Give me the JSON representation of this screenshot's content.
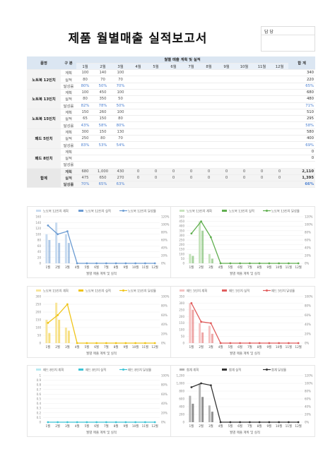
{
  "title": "제품 월별매출 실적보고서",
  "sign_label": "담 당",
  "header": {
    "product": "품명",
    "category": "구 분",
    "span": "월별 매출 계획 및 실적",
    "total": "합 계",
    "months": [
      "1월",
      "2월",
      "3월",
      "4월",
      "5월",
      "6월",
      "7월",
      "8월",
      "9월",
      "10월",
      "11월",
      "12월"
    ]
  },
  "products": [
    {
      "name": "노트북 12인치",
      "plan": [
        "100",
        "140",
        "100",
        "",
        "",
        "",
        "",
        "",
        "",
        "",
        "",
        ""
      ],
      "actual": [
        "80",
        "70",
        "70",
        "",
        "",
        "",
        "",
        "",
        "",
        "",
        "",
        ""
      ],
      "rate": [
        "80%",
        "50%",
        "70%",
        "",
        "",
        "",
        "",
        "",
        "",
        "",
        "",
        ""
      ],
      "tot_plan": "340",
      "tot_actual": "220",
      "tot_rate": "65%"
    },
    {
      "name": "노트북 13인치",
      "plan": [
        "100",
        "450",
        "100",
        "",
        "",
        "",
        "",
        "",
        "",
        "",
        "",
        ""
      ],
      "actual": [
        "80",
        "350",
        "50",
        "",
        "",
        "",
        "",
        "",
        "",
        "",
        "",
        ""
      ],
      "rate": [
        "82%",
        "78%",
        "50%",
        "",
        "",
        "",
        "",
        "",
        "",
        "",
        "",
        ""
      ],
      "tot_plan": "680",
      "tot_actual": "480",
      "tot_rate": "71%"
    },
    {
      "name": "노트북 15인치",
      "plan": [
        "150",
        "260",
        "100",
        "",
        "",
        "",
        "",
        "",
        "",
        "",
        "",
        ""
      ],
      "actual": [
        "65",
        "150",
        "80",
        "",
        "",
        "",
        "",
        "",
        "",
        "",
        "",
        ""
      ],
      "rate": [
        "43%",
        "58%",
        "80%",
        "",
        "",
        "",
        "",
        "",
        "",
        "",
        "",
        ""
      ],
      "tot_plan": "510",
      "tot_actual": "295",
      "tot_rate": "58%"
    },
    {
      "name": "패드 5인치",
      "plan": [
        "300",
        "150",
        "130",
        "",
        "",
        "",
        "",
        "",
        "",
        "",
        "",
        ""
      ],
      "actual": [
        "250",
        "80",
        "70",
        "",
        "",
        "",
        "",
        "",
        "",
        "",
        "",
        ""
      ],
      "rate": [
        "83%",
        "53%",
        "54%",
        "",
        "",
        "",
        "",
        "",
        "",
        "",
        "",
        ""
      ],
      "tot_plan": "580",
      "tot_actual": "400",
      "tot_rate": "69%"
    },
    {
      "name": "패드 8인치",
      "plan": [
        "",
        "",
        "",
        "",
        "",
        "",
        "",
        "",
        "",
        "",
        "",
        ""
      ],
      "actual": [
        "",
        "",
        "",
        "",
        "",
        "",
        "",
        "",
        "",
        "",
        "",
        ""
      ],
      "rate": [
        "",
        "",
        "",
        "",
        "",
        "",
        "",
        "",
        "",
        "",
        "",
        ""
      ],
      "tot_plan": "0",
      "tot_actual": "0",
      "tot_rate": ""
    }
  ],
  "row_labels": {
    "plan": "계획",
    "actual": "실적",
    "rate": "달성률"
  },
  "total_row": {
    "name": "합계",
    "plan": [
      "680",
      "1,000",
      "430",
      "0",
      "0",
      "0",
      "0",
      "0",
      "0",
      "0",
      "0",
      "0"
    ],
    "actual": [
      "475",
      "650",
      "270",
      "0",
      "0",
      "0",
      "0",
      "0",
      "0",
      "0",
      "0",
      "0"
    ],
    "rate": [
      "70%",
      "65%",
      "63%",
      "",
      "",
      "",
      "",
      "",
      "",
      "",
      "",
      ""
    ],
    "tot_plan": "2,110",
    "tot_actual": "1,395",
    "tot_rate": "66%"
  },
  "chart_data": [
    {
      "type": "bar",
      "legend": [
        "노트북 12인치 계획",
        "노트북 12인치 실적",
        "노트북 12인치 달성률"
      ],
      "xlabel": "월별 매출 계획 및 실적",
      "color": "#6b9bd2",
      "light": "#c8dbf0",
      "categories": [
        "1월",
        "2월",
        "3월",
        "4월",
        "5월",
        "6월",
        "7월",
        "8월",
        "9월",
        "10월",
        "11월",
        "12월"
      ],
      "plan": [
        100,
        140,
        100,
        0,
        0,
        0,
        0,
        0,
        0,
        0,
        0,
        0
      ],
      "actual": [
        80,
        70,
        70,
        0,
        0,
        0,
        0,
        0,
        0,
        0,
        0,
        0
      ],
      "rate": [
        80,
        50,
        70,
        0,
        0,
        0,
        0,
        0,
        0,
        0,
        0,
        0
      ],
      "ylim": [
        0,
        160
      ],
      "yticks": [
        "0",
        "20",
        "40",
        "60",
        "80",
        "100",
        "120",
        "140",
        "160"
      ],
      "y2ticks": [
        "0%",
        "20%",
        "40%",
        "60%",
        "80%",
        "100%",
        "120%"
      ],
      "line_values": [
        130,
        100,
        110,
        0,
        0,
        0,
        0,
        0,
        0,
        0,
        0,
        0
      ]
    },
    {
      "type": "bar",
      "legend": [
        "노트북 13인치 계획",
        "노트북 13인치 실적",
        "노트북 13인치 달성률"
      ],
      "xlabel": "월별 매출 계획 및 실적",
      "color": "#5fae4e",
      "light": "#c6e3bd",
      "categories": [
        "1월",
        "2월",
        "3월",
        "4월",
        "5월",
        "6월",
        "7월",
        "8월",
        "9월",
        "10월",
        "11월",
        "12월"
      ],
      "plan": [
        100,
        450,
        100,
        0,
        0,
        0,
        0,
        0,
        0,
        0,
        0,
        0
      ],
      "actual": [
        80,
        350,
        50,
        0,
        0,
        0,
        0,
        0,
        0,
        0,
        0,
        0
      ],
      "rate": [
        82,
        78,
        50,
        0,
        0,
        0,
        0,
        0,
        0,
        0,
        0,
        0
      ],
      "ylim": [
        0,
        500
      ],
      "yticks": [
        "0",
        "50",
        "100",
        "150",
        "200",
        "250",
        "300",
        "350",
        "400",
        "450",
        "500"
      ],
      "y2ticks": [
        "0%",
        "20%",
        "40%",
        "60%",
        "80%",
        "100%",
        "120%"
      ],
      "line_values": [
        320,
        450,
        280,
        0,
        0,
        0,
        0,
        0,
        0,
        0,
        0,
        0
      ]
    },
    {
      "type": "bar",
      "legend": [
        "노트북 15인치 계획",
        "노트북 15인치 실적",
        "노트북 15인치 달성률"
      ],
      "xlabel": "월별 매출 계획 및 실적",
      "color": "#f0c419",
      "light": "#f8e59a",
      "categories": [
        "1월",
        "2월",
        "3월",
        "4월",
        "5월",
        "6월",
        "7월",
        "8월",
        "9월",
        "10월",
        "11월",
        "12월"
      ],
      "plan": [
        150,
        260,
        100,
        0,
        0,
        0,
        0,
        0,
        0,
        0,
        0,
        0
      ],
      "actual": [
        65,
        150,
        80,
        0,
        0,
        0,
        0,
        0,
        0,
        0,
        0,
        0
      ],
      "rate": [
        43,
        58,
        80,
        0,
        0,
        0,
        0,
        0,
        0,
        0,
        0,
        0
      ],
      "ylim": [
        0,
        300
      ],
      "yticks": [
        "0",
        "50",
        "100",
        "150",
        "200",
        "250",
        "300"
      ],
      "y2ticks": [
        "0%",
        "20%",
        "40%",
        "60%",
        "80%",
        "100%"
      ],
      "line_values": [
        130,
        180,
        250,
        0,
        0,
        0,
        0,
        0,
        0,
        0,
        0,
        0
      ]
    },
    {
      "type": "bar",
      "legend": [
        "패드 5인치 계획",
        "패드 5인치 실적",
        "패드 5인치 달성률"
      ],
      "xlabel": "월별 매출 계획 및 실적",
      "color": "#e05c5c",
      "light": "#f5c2c2",
      "categories": [
        "1월",
        "2월",
        "3월",
        "4월",
        "5월",
        "6월",
        "7월",
        "8월",
        "9월",
        "10월",
        "11월",
        "12월"
      ],
      "plan": [
        300,
        150,
        130,
        0,
        0,
        0,
        0,
        0,
        0,
        0,
        0,
        0
      ],
      "actual": [
        250,
        80,
        70,
        0,
        0,
        0,
        0,
        0,
        0,
        0,
        0,
        0
      ],
      "rate": [
        83,
        53,
        54,
        0,
        0,
        0,
        0,
        0,
        0,
        0,
        0,
        0
      ],
      "ylim": [
        0,
        350
      ],
      "yticks": [
        "0",
        "50",
        "100",
        "150",
        "200",
        "250",
        "300",
        "350"
      ],
      "y2ticks": [
        "0%",
        "20%",
        "40%",
        "60%",
        "80%",
        "100%"
      ],
      "line_values": [
        300,
        160,
        150,
        0,
        0,
        0,
        0,
        0,
        0,
        0,
        0,
        0
      ]
    },
    {
      "type": "bar",
      "legend": [
        "패드 8인치 계획",
        "패드 8인치 실적",
        "패드 8인치 달성률"
      ],
      "xlabel": "월별 매출 계획 및 실적",
      "color": "#3cc4d6",
      "light": "#b8e9f0",
      "categories": [
        "1월",
        "2월",
        "3월",
        "4월",
        "5월",
        "6월",
        "7월",
        "8월",
        "9월",
        "10월",
        "11월",
        "12월"
      ],
      "plan": [
        0,
        0,
        0,
        0,
        0,
        0,
        0,
        0,
        0,
        0,
        0,
        0
      ],
      "actual": [
        0,
        0,
        0,
        0,
        0,
        0,
        0,
        0,
        0,
        0,
        0,
        0
      ],
      "rate": [
        0,
        0,
        0,
        0,
        0,
        0,
        0,
        0,
        0,
        0,
        0,
        0
      ],
      "ylim": [
        0,
        1
      ],
      "yticks": [
        "0",
        "0.1",
        "0.2",
        "0.3",
        "0.4",
        "0.5",
        "0.6",
        "0.7",
        "0.8",
        "0.9",
        "1"
      ],
      "y2ticks": [
        "0%",
        "20%",
        "40%",
        "60%",
        "80%",
        "100%"
      ],
      "line_values": [
        0,
        0,
        0,
        0,
        0,
        0,
        0,
        0,
        0,
        0,
        0,
        0
      ]
    },
    {
      "type": "bar",
      "legend": [
        "합계 계획",
        "합계 실적",
        "합계 달성률"
      ],
      "xlabel": "월별 매출 계획 및 실적",
      "color": "#333333",
      "light": "#b5b5b5",
      "categories": [
        "1월",
        "2월",
        "3월",
        "4월",
        "5월",
        "6월",
        "7월",
        "8월",
        "9월",
        "10월",
        "11월",
        "12월"
      ],
      "plan": [
        680,
        1000,
        430,
        0,
        0,
        0,
        0,
        0,
        0,
        0,
        0,
        0
      ],
      "actual": [
        475,
        650,
        270,
        0,
        0,
        0,
        0,
        0,
        0,
        0,
        0,
        0
      ],
      "rate": [
        70,
        65,
        63,
        0,
        0,
        0,
        0,
        0,
        0,
        0,
        0,
        0
      ],
      "ylim": [
        0,
        1200
      ],
      "yticks": [
        "0",
        "200",
        "400",
        "600",
        "800",
        "1,000",
        "1,200"
      ],
      "y2ticks": [
        "0%",
        "20%",
        "40%",
        "60%",
        "80%",
        "100%",
        "120%"
      ],
      "line_values": [
        900,
        1000,
        950,
        0,
        0,
        0,
        0,
        0,
        0,
        0,
        0,
        0
      ]
    }
  ]
}
